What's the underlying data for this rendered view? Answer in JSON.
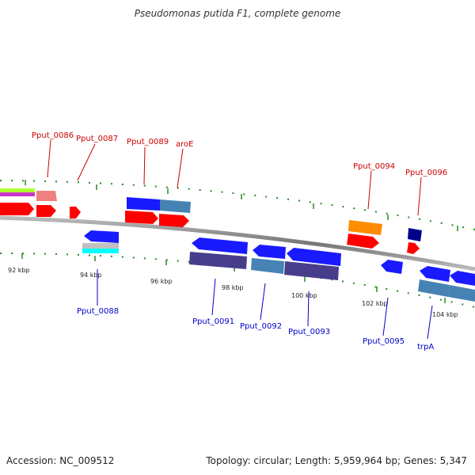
{
  "title": "Pseudomonas putida F1, complete genome",
  "footer": {
    "accession": "Accession: NC_009512",
    "info": "Topology: circular; Length: 5,959,964 bp; Genes: 5,347"
  },
  "scale_labels": [
    "92 kbp",
    "94 kbp",
    "96 kbp",
    "98 kbp",
    "100 kbp",
    "102 kbp",
    "104 kbp"
  ],
  "genes_top": [
    "Pput_0086",
    "Pput_0087",
    "Pput_0089",
    "aroE",
    "Pput_0094",
    "Pput_0096"
  ],
  "genes_bottom": [
    "Pput_0088",
    "Pput_0091",
    "Pput_0092",
    "Pput_0093",
    "Pput_0095",
    "trpA"
  ],
  "colors": {
    "top_label": "#cc0000",
    "bottom_label": "#0000cc",
    "backbone": "#888888",
    "tick": "#228b22",
    "red": "#ff0000",
    "blue": "#1a1aff",
    "steel": "#4682b4",
    "purple": "#483d8b",
    "orange": "#ff8c00",
    "navy": "#00008b"
  }
}
